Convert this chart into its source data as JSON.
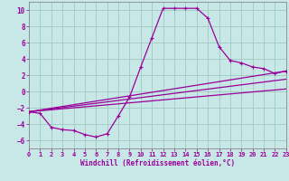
{
  "background_color": "#c8e8e8",
  "grid_color": "#a0c8c0",
  "line_color": "#990099",
  "xlabel": "Windchill (Refroidissement éolien,°C)",
  "xlim": [
    0,
    23
  ],
  "ylim": [
    -7,
    11
  ],
  "xticks": [
    0,
    1,
    2,
    3,
    4,
    5,
    6,
    7,
    8,
    9,
    10,
    11,
    12,
    13,
    14,
    15,
    16,
    17,
    18,
    19,
    20,
    21,
    22,
    23
  ],
  "yticks": [
    -6,
    -4,
    -2,
    0,
    2,
    4,
    6,
    8,
    10
  ],
  "series": [
    [
      0,
      -2.5
    ],
    [
      1,
      -2.7
    ],
    [
      2,
      -4.4
    ],
    [
      3,
      -4.7
    ],
    [
      4,
      -4.8
    ],
    [
      5,
      -5.3
    ],
    [
      6,
      -5.6
    ],
    [
      7,
      -5.2
    ],
    [
      8,
      -3.0
    ],
    [
      9,
      -0.7
    ],
    [
      10,
      3.0
    ],
    [
      11,
      6.6
    ],
    [
      12,
      10.2
    ],
    [
      13,
      10.2
    ],
    [
      14,
      10.2
    ],
    [
      15,
      10.2
    ],
    [
      16,
      9.0
    ],
    [
      17,
      5.5
    ],
    [
      18,
      3.8
    ],
    [
      19,
      3.5
    ],
    [
      20,
      3.0
    ],
    [
      21,
      2.8
    ],
    [
      22,
      2.2
    ],
    [
      23,
      2.5
    ]
  ],
  "line2": [
    [
      0,
      -2.5
    ],
    [
      23,
      2.5
    ]
  ],
  "line3": [
    [
      0,
      -2.5
    ],
    [
      23,
      1.5
    ]
  ],
  "line4": [
    [
      0,
      -2.5
    ],
    [
      23,
      0.3
    ]
  ]
}
